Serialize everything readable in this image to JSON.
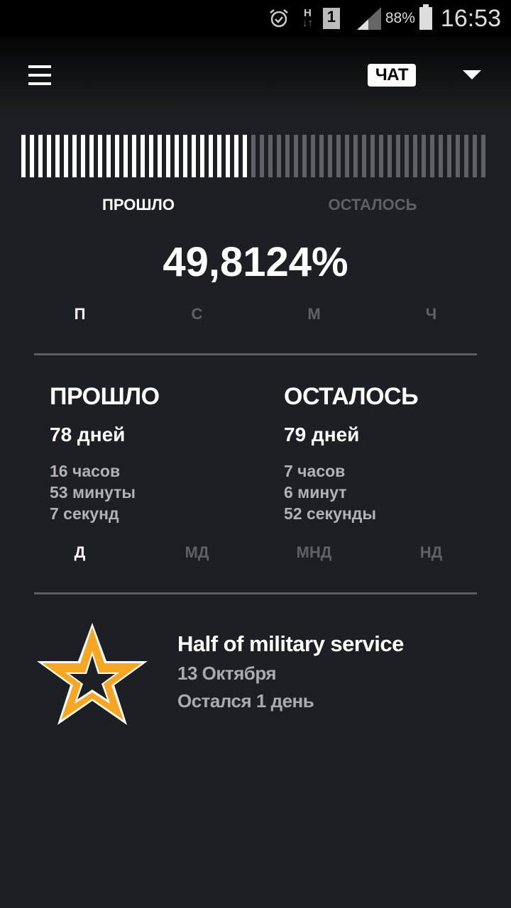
{
  "status_bar": {
    "icons": [
      "alarm-icon",
      "h-network-icon",
      "sim-1-icon",
      "signal-icon",
      "battery-icon"
    ],
    "battery": "88%",
    "time": "16:53",
    "sim": "1",
    "network": "H"
  },
  "toolbar": {
    "menu_icon": "hamburger-menu-icon",
    "chat_label": "ЧАТ",
    "dropdown_icon": "triangle-down-icon"
  },
  "progress": {
    "fraction": 0.498124,
    "passed_label": "ПРОШЛО",
    "remaining_label": "ОСТАЛОСЬ",
    "percent": "49,8124%",
    "mode_tabs": [
      "П",
      "С",
      "М",
      "Ч"
    ],
    "active_mode": 0
  },
  "passed": {
    "title": "ПРОШЛО",
    "days": "78 дней",
    "hours": "16 часов",
    "minutes": "53 минуты",
    "seconds": "7 секунд"
  },
  "remaining": {
    "title": "ОСТАЛОСЬ",
    "days": "79 дней",
    "hours": "7 часов",
    "minutes": "6 минут",
    "seconds": "52 секунды"
  },
  "unit_tabs": [
    "Д",
    "МД",
    "МНД",
    "НД"
  ],
  "active_unit": 0,
  "event": {
    "icon": "army-star-icon",
    "title": "Half of military service",
    "date": "13 Октября",
    "remaining": "Остался 1 день"
  },
  "colors": {
    "background": "#1c1f23",
    "star": "#f5a623",
    "inactive": "#5f6165"
  }
}
